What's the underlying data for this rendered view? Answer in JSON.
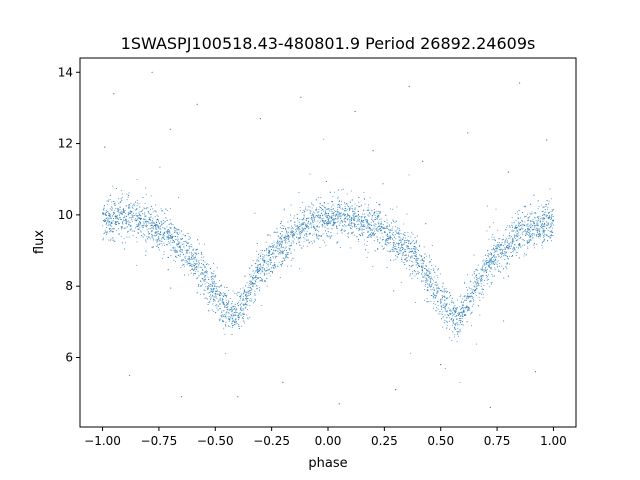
{
  "chart_data": {
    "type": "scatter",
    "title": "1SWASPJ100518.43-480801.9 Period 26892.24609s",
    "xlabel": "phase",
    "ylabel": "flux",
    "xlim": [
      -1.1,
      1.1
    ],
    "ylim": [
      4.05,
      14.4
    ],
    "xticks": [
      -1.0,
      -0.75,
      -0.5,
      -0.25,
      0.0,
      0.25,
      0.5,
      0.75,
      1.0
    ],
    "xtick_labels": [
      "−1.00",
      "−0.75",
      "−0.50",
      "−0.25",
      "0.00",
      "0.25",
      "0.50",
      "0.75",
      "1.00"
    ],
    "yticks": [
      6,
      8,
      10,
      12,
      14
    ],
    "ytick_labels": [
      "6",
      "8",
      "10",
      "12",
      "14"
    ],
    "grid": false,
    "marker_color": "#1f77b4",
    "trend": {
      "x": [
        -1.0,
        -0.9,
        -0.8,
        -0.7,
        -0.6,
        -0.5,
        -0.45,
        -0.42,
        -0.35,
        -0.3,
        -0.2,
        -0.1,
        0.0,
        0.1,
        0.2,
        0.3,
        0.4,
        0.5,
        0.55,
        0.58,
        0.65,
        0.7,
        0.8,
        0.9,
        1.0
      ],
      "y": [
        9.85,
        9.95,
        9.75,
        9.4,
        8.8,
        7.8,
        7.3,
        7.1,
        7.8,
        8.5,
        9.2,
        9.7,
        9.95,
        9.9,
        9.7,
        9.3,
        8.7,
        7.7,
        7.2,
        7.1,
        7.9,
        8.5,
        9.25,
        9.6,
        9.8
      ]
    },
    "outliers": [
      {
        "x": -0.95,
        "y": 13.4
      },
      {
        "x": -0.78,
        "y": 14.0
      },
      {
        "x": -0.58,
        "y": 13.1
      },
      {
        "x": -0.3,
        "y": 12.7
      },
      {
        "x": -0.12,
        "y": 13.3
      },
      {
        "x": 0.12,
        "y": 12.9
      },
      {
        "x": 0.36,
        "y": 13.6
      },
      {
        "x": 0.62,
        "y": 12.3
      },
      {
        "x": 0.85,
        "y": 13.7
      },
      {
        "x": 0.97,
        "y": 12.1
      },
      {
        "x": -0.88,
        "y": 5.5
      },
      {
        "x": -0.65,
        "y": 4.9
      },
      {
        "x": -0.2,
        "y": 5.3
      },
      {
        "x": 0.05,
        "y": 4.7
      },
      {
        "x": 0.3,
        "y": 5.1
      },
      {
        "x": 0.72,
        "y": 4.6
      },
      {
        "x": 0.92,
        "y": 5.6
      },
      {
        "x": -0.4,
        "y": 4.9
      },
      {
        "x": 0.5,
        "y": 5.8
      },
      {
        "x": -0.99,
        "y": 11.9
      },
      {
        "x": 0.42,
        "y": 11.5
      },
      {
        "x": -0.7,
        "y": 12.4
      },
      {
        "x": 0.2,
        "y": 11.8
      },
      {
        "x": 0.8,
        "y": 11.2
      }
    ]
  }
}
